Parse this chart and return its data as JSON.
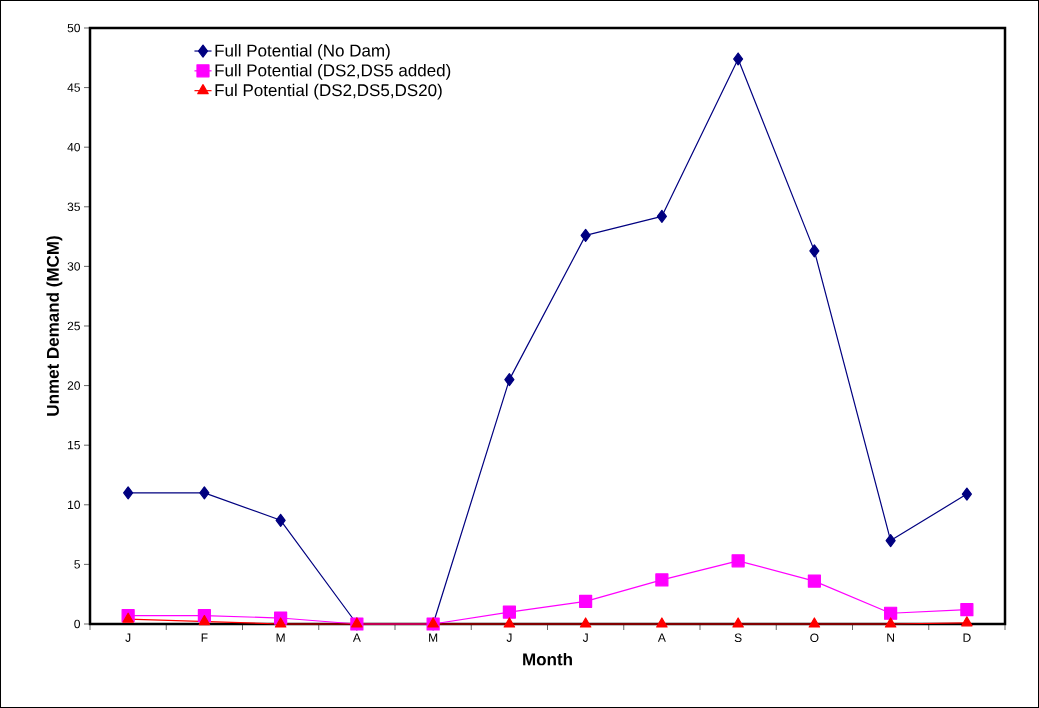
{
  "chart_data": {
    "type": "line",
    "xlabel": "Month",
    "ylabel": "Unmet Demand (MCM)",
    "categories": [
      "J",
      "F",
      "M",
      "A",
      "M",
      "J",
      "J",
      "A",
      "S",
      "O",
      "N",
      "D"
    ],
    "series": [
      {
        "name": "Full Potential (No Dam)",
        "color": "#000080",
        "marker": "diamond",
        "values": [
          11,
          11,
          8.7,
          0,
          0,
          20.5,
          32.6,
          34.2,
          47.4,
          31.3,
          7.0,
          10.9
        ]
      },
      {
        "name": "Full Potential (DS2,DS5 added)",
        "color": "#ff00ff",
        "marker": "square",
        "values": [
          0.7,
          0.7,
          0.5,
          0,
          0,
          1.0,
          1.9,
          3.7,
          5.3,
          3.6,
          0.9,
          1.2
        ]
      },
      {
        "name": "Ful Potential (DS2,DS5,DS20)",
        "color": "#ff0000",
        "marker": "triangle",
        "values": [
          0.4,
          0.2,
          0,
          0,
          0,
          0,
          0,
          0,
          0,
          0,
          0,
          0.1
        ]
      }
    ],
    "ylim": [
      0,
      50
    ],
    "yticks": [
      0,
      5,
      10,
      15,
      20,
      25,
      30,
      35,
      40,
      45,
      50
    ],
    "grid": false,
    "legend": "top left",
    "line_style": "solid"
  }
}
